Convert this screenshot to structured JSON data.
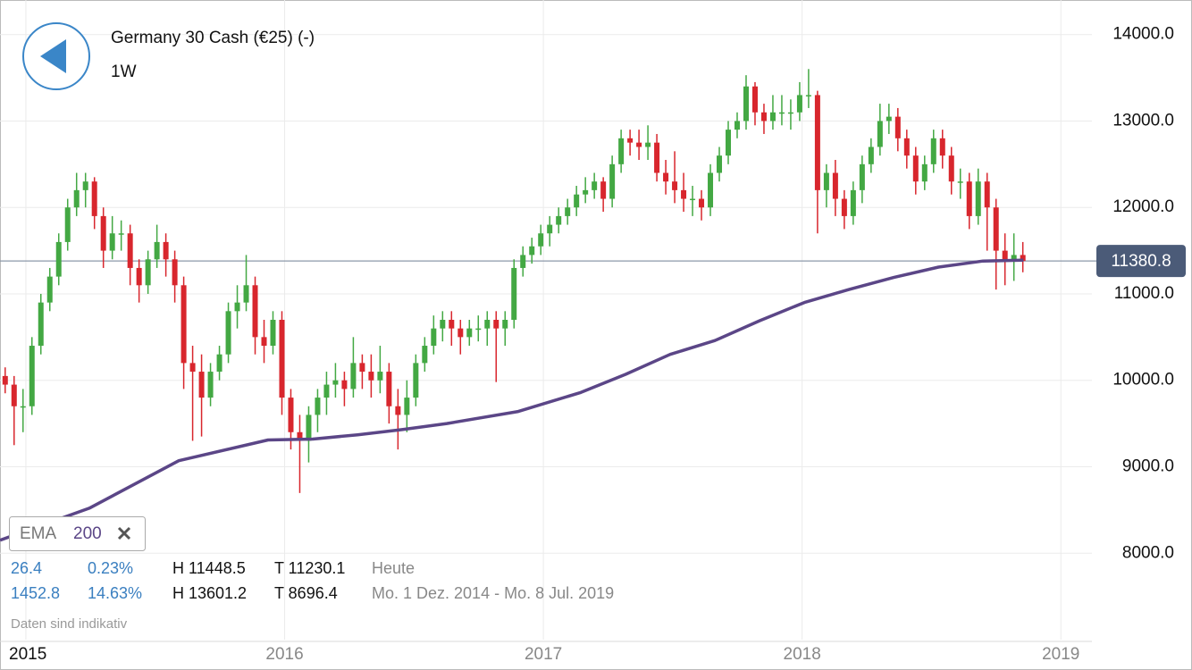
{
  "header": {
    "title": "Germany 30 Cash (€25) (-)",
    "interval": "1W"
  },
  "chart_data": {
    "type": "candlestick",
    "x": [
      2014.92,
      2014.9545,
      2014.989,
      2015.0235,
      2015.058,
      2015.0925,
      2015.127,
      2015.1615,
      2015.196,
      2015.2305,
      2015.265,
      2015.2995,
      2015.334,
      2015.3685,
      2015.403,
      2015.4375,
      2015.472,
      2015.5065,
      2015.541,
      2015.5755,
      2015.61,
      2015.6445,
      2015.679,
      2015.7135,
      2015.748,
      2015.7825,
      2015.817,
      2015.8515,
      2015.886,
      2015.9205,
      2015.955,
      2015.9895,
      2016.024,
      2016.0585,
      2016.093,
      2016.1275,
      2016.162,
      2016.1965,
      2016.231,
      2016.2655,
      2016.3,
      2016.3345,
      2016.369,
      2016.4035,
      2016.438,
      2016.4725,
      2016.507,
      2016.5415,
      2016.576,
      2016.6105,
      2016.645,
      2016.6795,
      2016.714,
      2016.7485,
      2016.783,
      2016.8175,
      2016.852,
      2016.8865,
      2016.921,
      2016.9555,
      2016.99,
      2017.0245,
      2017.059,
      2017.0935,
      2017.128,
      2017.1625,
      2017.197,
      2017.2315,
      2017.266,
      2017.3005,
      2017.335,
      2017.3695,
      2017.404,
      2017.4385,
      2017.473,
      2017.5075,
      2017.542,
      2017.5765,
      2017.611,
      2017.6455,
      2017.68,
      2017.7145,
      2017.749,
      2017.7835,
      2017.818,
      2017.8525,
      2017.887,
      2017.9215,
      2017.956,
      2017.9905,
      2018.025,
      2018.0595,
      2018.094,
      2018.1285,
      2018.163,
      2018.1975,
      2018.232,
      2018.2665,
      2018.301,
      2018.3355,
      2018.37,
      2018.4045,
      2018.439,
      2018.4735,
      2018.508,
      2018.5425,
      2018.577,
      2018.6115,
      2018.646,
      2018.6805,
      2018.715,
      2018.7495,
      2018.784,
      2018.8185,
      2018.853
    ],
    "open": [
      10050,
      9950,
      9700,
      9700,
      10400,
      10900,
      11200,
      11600,
      12000,
      12200,
      12300,
      11900,
      11500,
      11700,
      11700,
      11300,
      11100,
      11400,
      11600,
      11400,
      11100,
      10200,
      10100,
      9800,
      10100,
      10300,
      10800,
      10900,
      11100,
      10500,
      10400,
      10700,
      9800,
      9400,
      9300,
      9600,
      9800,
      9950,
      10000,
      9900,
      10200,
      10100,
      10000,
      10100,
      9700,
      9600,
      9800,
      10200,
      10400,
      10600,
      10700,
      10600,
      10500,
      10600,
      10600,
      10700,
      10600,
      10700,
      11300,
      11450,
      11550,
      11700,
      11800,
      11900,
      12000,
      12150,
      12200,
      12300,
      12100,
      12500,
      12800,
      12750,
      12700,
      12750,
      12400,
      12300,
      12200,
      12100,
      12100,
      12000,
      12400,
      12600,
      12900,
      13000,
      13400,
      13100,
      13000,
      13100,
      13100,
      13100,
      13300,
      13300,
      12200,
      12400,
      12100,
      11900,
      12200,
      12500,
      12700,
      13000,
      13050,
      12800,
      12600,
      12300,
      12500,
      12800,
      12600,
      12300,
      12300,
      11900,
      12300,
      12000,
      11500,
      11400,
      11450
    ],
    "high": [
      10150,
      10050,
      9900,
      10500,
      11000,
      11300,
      11700,
      12100,
      12400,
      12400,
      12350,
      12000,
      11900,
      11850,
      11800,
      11400,
      11500,
      11800,
      11700,
      11500,
      11200,
      10400,
      10300,
      10200,
      10400,
      10900,
      11100,
      11450,
      11200,
      10700,
      10800,
      10800,
      9900,
      9600,
      9700,
      9900,
      10100,
      10200,
      10100,
      10500,
      10300,
      10300,
      10400,
      10200,
      9900,
      10000,
      10300,
      10500,
      10750,
      10800,
      10800,
      10700,
      10700,
      10750,
      10800,
      10800,
      10800,
      11400,
      11550,
      11650,
      11800,
      11900,
      12000,
      12100,
      12250,
      12350,
      12400,
      12350,
      12600,
      12900,
      12900,
      12900,
      12950,
      12850,
      12550,
      12650,
      12400,
      12250,
      12200,
      12500,
      12700,
      13000,
      13100,
      13530,
      13450,
      13200,
      13300,
      13300,
      13250,
      13450,
      13601.2,
      13350,
      12500,
      12550,
      12200,
      12300,
      12600,
      12800,
      13200,
      13200,
      13150,
      12900,
      12700,
      12600,
      12900,
      12900,
      12700,
      12450,
      12400,
      12450,
      12400,
      12100,
      11700,
      11700,
      11600
    ],
    "low": [
      9850,
      9250,
      9400,
      9600,
      10300,
      10800,
      11100,
      11500,
      11900,
      12000,
      11750,
      11300,
      11400,
      11500,
      11100,
      10900,
      11000,
      11300,
      11200,
      10900,
      9900,
      9300,
      9350,
      9700,
      10000,
      10200,
      10600,
      10800,
      10300,
      10200,
      10300,
      9600,
      9200,
      8696.4,
      9050,
      9400,
      9600,
      9800,
      9700,
      9800,
      9900,
      9800,
      9850,
      9500,
      9200,
      9400,
      9700,
      10100,
      10300,
      10450,
      10400,
      10300,
      10400,
      10450,
      10400,
      9980,
      10400,
      10600,
      11200,
      11350,
      11450,
      11550,
      11700,
      11800,
      11900,
      12050,
      12100,
      11950,
      12000,
      12400,
      12600,
      12550,
      12550,
      12300,
      12150,
      12050,
      11950,
      11900,
      11850,
      11900,
      12300,
      12500,
      12800,
      12900,
      12950,
      12850,
      12900,
      12950,
      12900,
      13000,
      13150,
      11700,
      12000,
      11900,
      11750,
      11800,
      12050,
      12400,
      12600,
      12850,
      12650,
      12450,
      12150,
      12200,
      12400,
      12450,
      12150,
      12100,
      11750,
      11800,
      11500,
      11050,
      11100,
      11150,
      11250
    ],
    "close": [
      9950,
      9700,
      9700,
      10400,
      10900,
      11200,
      11600,
      12000,
      12200,
      12300,
      11900,
      11500,
      11700,
      11700,
      11300,
      11100,
      11400,
      11600,
      11400,
      11100,
      10200,
      10100,
      9800,
      10100,
      10300,
      10800,
      10900,
      11100,
      10500,
      10400,
      10700,
      9800,
      9400,
      9300,
      9600,
      9800,
      9950,
      10000,
      9900,
      10200,
      10100,
      10000,
      10100,
      9700,
      9600,
      9800,
      10200,
      10400,
      10600,
      10700,
      10600,
      10500,
      10600,
      10600,
      10700,
      10600,
      10700,
      11300,
      11450,
      11550,
      11700,
      11800,
      11900,
      12000,
      12150,
      12200,
      12300,
      12100,
      12500,
      12800,
      12750,
      12700,
      12750,
      12400,
      12300,
      12200,
      12100,
      12100,
      12000,
      12400,
      12600,
      12900,
      13000,
      13400,
      13100,
      13000,
      13100,
      13100,
      13100,
      13300,
      13300,
      12200,
      12400,
      12100,
      11900,
      12200,
      12500,
      12700,
      13000,
      13050,
      12800,
      12600,
      12300,
      12500,
      12800,
      12600,
      12300,
      12300,
      11900,
      12300,
      12000,
      11500,
      11400,
      11450,
      11380.8
    ],
    "up_color": "#43a843",
    "down_color": "#d8262d",
    "xlim": [
      2014.9,
      2019.12
    ],
    "ylim": [
      7000,
      14400
    ],
    "xticks": [
      2015,
      2016,
      2017,
      2018,
      2019
    ],
    "yticks": [
      {
        "value": 8000,
        "label": "8000.0"
      },
      {
        "value": 9000,
        "label": "9000.0"
      },
      {
        "value": 10000,
        "label": "10000.0"
      },
      {
        "value": 11000,
        "label": "11000.0"
      },
      {
        "value": 12000,
        "label": "12000.0"
      },
      {
        "value": 13000,
        "label": "13000.0"
      },
      {
        "value": 14000,
        "label": "14000.0"
      }
    ],
    "grid": true,
    "current_price": 11380.8,
    "overlay": {
      "type": "line",
      "name": "EMA",
      "period": 200,
      "color": "#5b4687",
      "x": [
        2014.9,
        2015.245,
        2015.591,
        2015.936,
        2016.109,
        2016.282,
        2016.454,
        2016.627,
        2016.903,
        2017.145,
        2017.318,
        2017.49,
        2017.663,
        2017.836,
        2018.009,
        2018.181,
        2018.354,
        2018.527,
        2018.699,
        2018.855
      ],
      "values": [
        8150,
        8520,
        9070,
        9310,
        9320,
        9370,
        9430,
        9500,
        9640,
        9860,
        10070,
        10300,
        10460,
        10690,
        10900,
        11050,
        11190,
        11310,
        11380,
        11390
      ]
    }
  },
  "stats": {
    "rows": [
      [
        "26.4",
        "0.23%",
        "H 11448.5",
        "T 11230.1",
        "Heute"
      ],
      [
        "1452.8",
        "14.63%",
        "H 13601.2",
        "T 8696.4",
        "Mo. 1 Dez. 2014 - Mo. 8 Jul. 2019"
      ]
    ]
  },
  "footnote": "Daten sind indikativ"
}
